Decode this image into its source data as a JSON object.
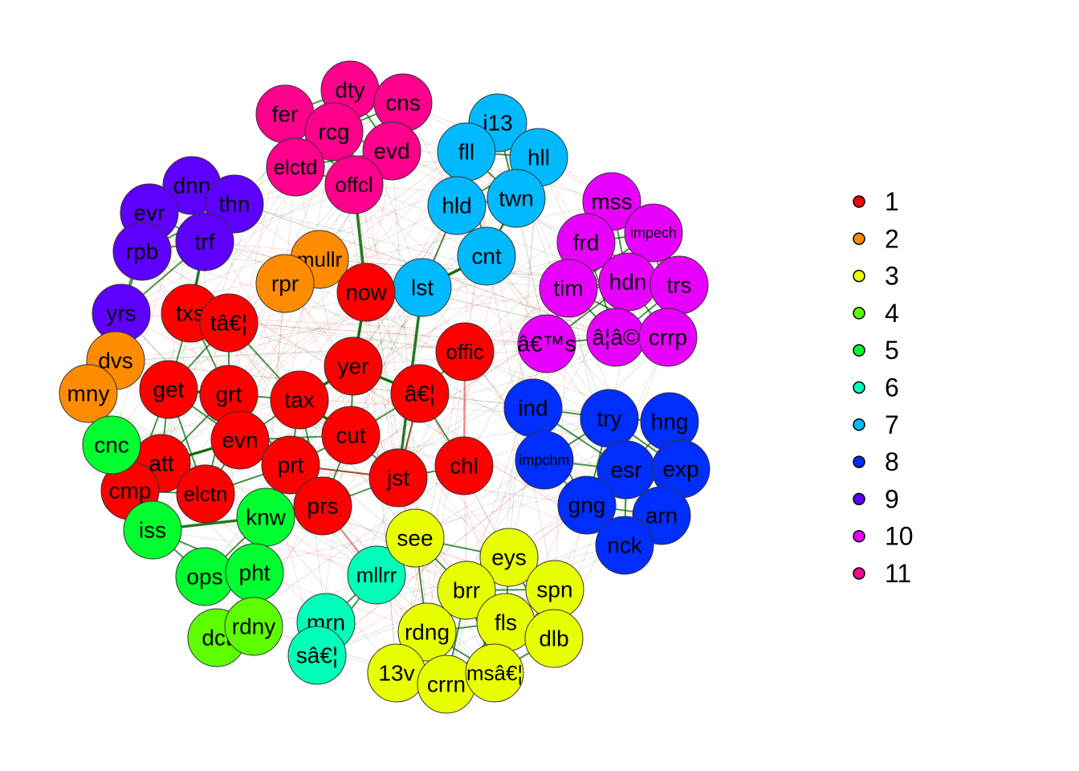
{
  "communities": [
    {
      "id": 1,
      "label": "1",
      "color": "#FF0000"
    },
    {
      "id": 2,
      "label": "2",
      "color": "#FF8C00"
    },
    {
      "id": 3,
      "label": "3",
      "color": "#E8FF00"
    },
    {
      "id": 4,
      "label": "4",
      "color": "#5DFF00"
    },
    {
      "id": 5,
      "label": "5",
      "color": "#00FF2E"
    },
    {
      "id": 6,
      "label": "6",
      "color": "#00FFB9"
    },
    {
      "id": 7,
      "label": "7",
      "color": "#00B9FF"
    },
    {
      "id": 8,
      "label": "8",
      "color": "#002EFF"
    },
    {
      "id": 9,
      "label": "9",
      "color": "#5D00FF"
    },
    {
      "id": 10,
      "label": "10",
      "color": "#E800FF"
    },
    {
      "id": 11,
      "label": "11",
      "color": "#FF008C"
    }
  ],
  "nodes": [
    {
      "id": "dty",
      "label": "dty",
      "community": 11
    },
    {
      "id": "cns",
      "label": "cns",
      "community": 11
    },
    {
      "id": "fer",
      "label": "fer",
      "community": 11
    },
    {
      "id": "rcg",
      "label": "rcg",
      "community": 11
    },
    {
      "id": "evd",
      "label": "evd",
      "community": 11
    },
    {
      "id": "elctd",
      "label": "elctd",
      "community": 11
    },
    {
      "id": "offcl",
      "label": "offcl",
      "community": 11
    },
    {
      "id": "i13",
      "label": "i13",
      "community": 7
    },
    {
      "id": "fll",
      "label": "fll",
      "community": 7
    },
    {
      "id": "hll",
      "label": "hll",
      "community": 7
    },
    {
      "id": "hld",
      "label": "hld",
      "community": 7
    },
    {
      "id": "twn",
      "label": "twn",
      "community": 7
    },
    {
      "id": "cnt",
      "label": "cnt",
      "community": 7
    },
    {
      "id": "lst",
      "label": "lst",
      "community": 7
    },
    {
      "id": "dnn",
      "label": "dnn",
      "community": 9
    },
    {
      "id": "evr",
      "label": "evr",
      "community": 9
    },
    {
      "id": "thn",
      "label": "thn",
      "community": 9
    },
    {
      "id": "trf",
      "label": "trf",
      "community": 9
    },
    {
      "id": "rpb",
      "label": "rpb",
      "community": 9
    },
    {
      "id": "yrs",
      "label": "yrs",
      "community": 9
    },
    {
      "id": "mullr",
      "label": "mullr",
      "community": 2
    },
    {
      "id": "rpr",
      "label": "rpr",
      "community": 2
    },
    {
      "id": "dvs",
      "label": "dvs",
      "community": 2
    },
    {
      "id": "mny",
      "label": "mny",
      "community": 2
    },
    {
      "id": "mss",
      "label": "mss",
      "community": 10
    },
    {
      "id": "impech",
      "label": "impech",
      "community": 10
    },
    {
      "id": "frd",
      "label": "frd",
      "community": 10
    },
    {
      "id": "tim",
      "label": "tim",
      "community": 10
    },
    {
      "id": "hdn",
      "label": "hdn",
      "community": 10
    },
    {
      "id": "trs",
      "label": "trs",
      "community": 10
    },
    {
      "id": "ams",
      "label": "â€™s",
      "community": 10
    },
    {
      "id": "aia",
      "label": "â¦â©",
      "community": 10
    },
    {
      "id": "crrp",
      "label": "crrp",
      "community": 10
    },
    {
      "id": "now",
      "label": "now",
      "community": 1
    },
    {
      "id": "txs",
      "label": "txs",
      "community": 1
    },
    {
      "id": "ta",
      "label": "tâ€¦",
      "community": 1
    },
    {
      "id": "offic",
      "label": "offic",
      "community": 1
    },
    {
      "id": "yer",
      "label": "yer",
      "community": 1
    },
    {
      "id": "get",
      "label": "get",
      "community": 1
    },
    {
      "id": "grt",
      "label": "grt",
      "community": 1
    },
    {
      "id": "tax",
      "label": "tax",
      "community": 1
    },
    {
      "id": "ae",
      "label": "â€¦",
      "community": 1
    },
    {
      "id": "cut",
      "label": "cut",
      "community": 1
    },
    {
      "id": "evn",
      "label": "evn",
      "community": 1
    },
    {
      "id": "chl",
      "label": "chl",
      "community": 1
    },
    {
      "id": "att",
      "label": "att",
      "community": 1
    },
    {
      "id": "prt",
      "label": "prt",
      "community": 1
    },
    {
      "id": "jst",
      "label": "jst",
      "community": 1
    },
    {
      "id": "cmp",
      "label": "cmp",
      "community": 1
    },
    {
      "id": "elctn",
      "label": "elctn",
      "community": 1
    },
    {
      "id": "prs",
      "label": "prs",
      "community": 1
    },
    {
      "id": "ind",
      "label": "ind",
      "community": 8
    },
    {
      "id": "try",
      "label": "try",
      "community": 8
    },
    {
      "id": "hng",
      "label": "hng",
      "community": 8
    },
    {
      "id": "impchm",
      "label": "impchm",
      "community": 8
    },
    {
      "id": "esr",
      "label": "esr",
      "community": 8
    },
    {
      "id": "exp",
      "label": "exp",
      "community": 8
    },
    {
      "id": "gng",
      "label": "gng",
      "community": 8
    },
    {
      "id": "arn",
      "label": "arn",
      "community": 8
    },
    {
      "id": "nck",
      "label": "nck",
      "community": 8
    },
    {
      "id": "cnc",
      "label": "cnc",
      "community": 5
    },
    {
      "id": "knw",
      "label": "knw",
      "community": 5
    },
    {
      "id": "iss",
      "label": "iss",
      "community": 5
    },
    {
      "id": "ops",
      "label": "ops",
      "community": 5
    },
    {
      "id": "pht",
      "label": "pht",
      "community": 5
    },
    {
      "id": "dct",
      "label": "dct",
      "community": 4
    },
    {
      "id": "rdny",
      "label": "rdny",
      "community": 4
    },
    {
      "id": "mllrr",
      "label": "mllrr",
      "community": 6
    },
    {
      "id": "mrn",
      "label": "mrn",
      "community": 6
    },
    {
      "id": "sa",
      "label": "sâ€¦",
      "community": 6
    },
    {
      "id": "see",
      "label": "see",
      "community": 3
    },
    {
      "id": "eys",
      "label": "eys",
      "community": 3
    },
    {
      "id": "brr",
      "label": "brr",
      "community": 3
    },
    {
      "id": "spn",
      "label": "spn",
      "community": 3
    },
    {
      "id": "fls",
      "label": "fls",
      "community": 3
    },
    {
      "id": "rdng",
      "label": "rdng",
      "community": 3
    },
    {
      "id": "dlb",
      "label": "dlb",
      "community": 3
    },
    {
      "id": "v13",
      "label": "13v",
      "community": 3
    },
    {
      "id": "crrn",
      "label": "crrn",
      "community": 3
    },
    {
      "id": "msa",
      "label": "msâ€¦",
      "community": 3
    }
  ],
  "edge_colors": {
    "positive": "#006400",
    "negative": "#CD2626"
  }
}
